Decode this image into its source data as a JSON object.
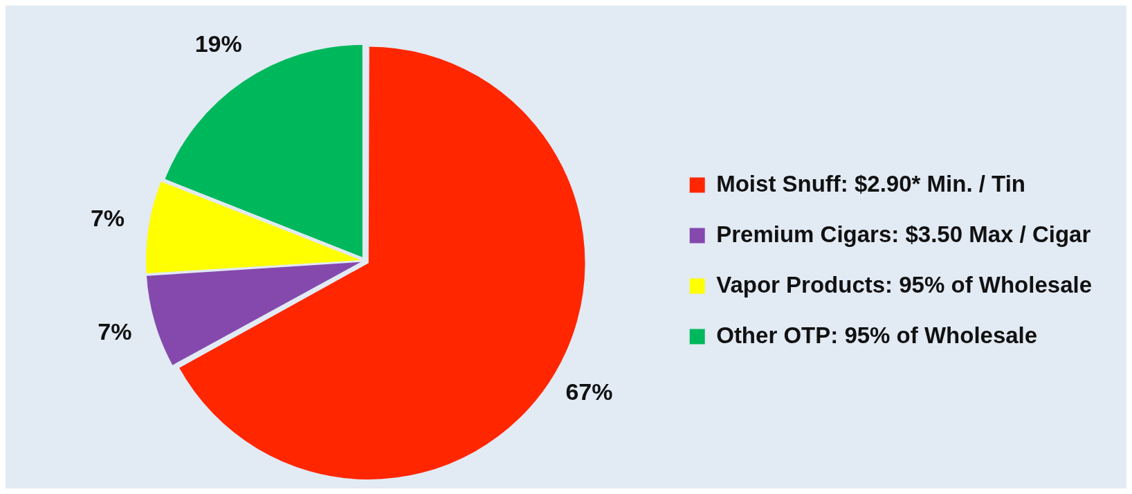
{
  "chart_data": {
    "type": "pie",
    "categories": [
      "Moist Snuff: $2.90* Min. / Tin",
      "Premium Cigars: $3.50 Max / Cigar",
      "Vapor Products: 95% of Wholesale",
      "Other OTP: 95% of Wholesale"
    ],
    "values": [
      67,
      7,
      7,
      19
    ],
    "colors": [
      "#ff2600",
      "#8549ad",
      "#ffff00",
      "#00b85c"
    ],
    "value_labels": [
      "67%",
      "7%",
      "7%",
      "19%"
    ],
    "legend": "right"
  }
}
